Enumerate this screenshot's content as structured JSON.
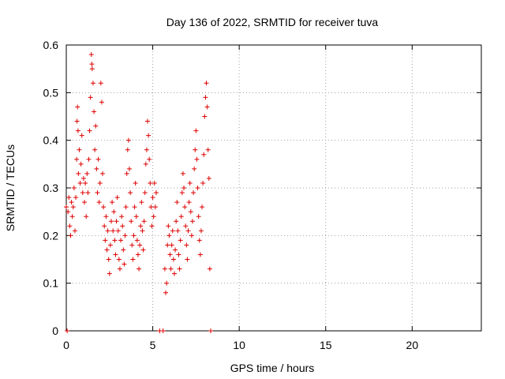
{
  "chart_data": {
    "type": "scatter",
    "title": "Day 136 of 2022, SRMTID for receiver tuva",
    "xlabel": "GPS time / hours",
    "ylabel": "SRMTID / TECUs",
    "xlim": [
      0,
      24
    ],
    "ylim": [
      0,
      0.6
    ],
    "x_ticks": [
      0,
      5,
      10,
      15,
      20
    ],
    "x_tick_labels": [
      "0",
      "5",
      "10",
      "15",
      "20"
    ],
    "y_ticks": [
      0,
      0.1,
      0.2,
      0.3,
      0.4,
      0.5,
      0.6
    ],
    "y_tick_labels": [
      "0",
      "0.1",
      "0.2",
      "0.3",
      "0.4",
      "0.5",
      "0.6"
    ],
    "grid": true,
    "marker": "+",
    "color": "#dd0000",
    "series": [
      {
        "name": "SRMTID",
        "points": [
          [
            0.0,
            0.26
          ],
          [
            0.05,
            0.0
          ],
          [
            0.1,
            0.25
          ],
          [
            0.15,
            0.28
          ],
          [
            0.2,
            0.22
          ],
          [
            0.25,
            0.2
          ],
          [
            0.3,
            0.27
          ],
          [
            0.35,
            0.24
          ],
          [
            0.4,
            0.26
          ],
          [
            0.45,
            0.3
          ],
          [
            0.5,
            0.21
          ],
          [
            0.55,
            0.28
          ],
          [
            0.6,
            0.36
          ],
          [
            0.62,
            0.44
          ],
          [
            0.65,
            0.47
          ],
          [
            0.68,
            0.42
          ],
          [
            0.7,
            0.33
          ],
          [
            0.75,
            0.38
          ],
          [
            0.8,
            0.31
          ],
          [
            0.85,
            0.35
          ],
          [
            0.9,
            0.41
          ],
          [
            0.95,
            0.29
          ],
          [
            1.0,
            0.32
          ],
          [
            1.05,
            0.27
          ],
          [
            1.1,
            0.31
          ],
          [
            1.15,
            0.24
          ],
          [
            1.2,
            0.33
          ],
          [
            1.25,
            0.29
          ],
          [
            1.3,
            0.36
          ],
          [
            1.35,
            0.42
          ],
          [
            1.4,
            0.49
          ],
          [
            1.45,
            0.58
          ],
          [
            1.48,
            0.56
          ],
          [
            1.5,
            0.55
          ],
          [
            1.55,
            0.52
          ],
          [
            1.6,
            0.46
          ],
          [
            1.65,
            0.38
          ],
          [
            1.7,
            0.43
          ],
          [
            1.75,
            0.34
          ],
          [
            1.8,
            0.29
          ],
          [
            1.85,
            0.36
          ],
          [
            1.9,
            0.27
          ],
          [
            1.95,
            0.31
          ],
          [
            2.0,
            0.52
          ],
          [
            2.05,
            0.48
          ],
          [
            2.1,
            0.33
          ],
          [
            2.15,
            0.26
          ],
          [
            2.2,
            0.22
          ],
          [
            2.25,
            0.19
          ],
          [
            2.3,
            0.24
          ],
          [
            2.35,
            0.17
          ],
          [
            2.4,
            0.21
          ],
          [
            2.45,
            0.15
          ],
          [
            2.5,
            0.12
          ],
          [
            2.55,
            0.18
          ],
          [
            2.6,
            0.23
          ],
          [
            2.65,
            0.27
          ],
          [
            2.7,
            0.21
          ],
          [
            2.75,
            0.25
          ],
          [
            2.8,
            0.19
          ],
          [
            2.85,
            0.16
          ],
          [
            2.9,
            0.23
          ],
          [
            2.95,
            0.28
          ],
          [
            3.0,
            0.21
          ],
          [
            3.05,
            0.15
          ],
          [
            3.1,
            0.13
          ],
          [
            3.15,
            0.19
          ],
          [
            3.2,
            0.24
          ],
          [
            3.25,
            0.22
          ],
          [
            3.3,
            0.17
          ],
          [
            3.35,
            0.14
          ],
          [
            3.4,
            0.2
          ],
          [
            3.45,
            0.26
          ],
          [
            3.5,
            0.33
          ],
          [
            3.55,
            0.38
          ],
          [
            3.6,
            0.4
          ],
          [
            3.65,
            0.34
          ],
          [
            3.7,
            0.29
          ],
          [
            3.75,
            0.23
          ],
          [
            3.8,
            0.18
          ],
          [
            3.85,
            0.15
          ],
          [
            3.9,
            0.2
          ],
          [
            3.95,
            0.26
          ],
          [
            4.0,
            0.31
          ],
          [
            4.05,
            0.24
          ],
          [
            4.1,
            0.19
          ],
          [
            4.15,
            0.16
          ],
          [
            4.2,
            0.13
          ],
          [
            4.25,
            0.18
          ],
          [
            4.3,
            0.22
          ],
          [
            4.35,
            0.27
          ],
          [
            4.4,
            0.21
          ],
          [
            4.45,
            0.17
          ],
          [
            4.5,
            0.23
          ],
          [
            4.55,
            0.29
          ],
          [
            4.6,
            0.35
          ],
          [
            4.65,
            0.38
          ],
          [
            4.7,
            0.44
          ],
          [
            4.75,
            0.41
          ],
          [
            4.8,
            0.36
          ],
          [
            4.85,
            0.31
          ],
          [
            4.9,
            0.26
          ],
          [
            4.95,
            0.22
          ],
          [
            5.0,
            0.28
          ],
          [
            5.05,
            0.24
          ],
          [
            5.1,
            0.31
          ],
          [
            5.15,
            0.26
          ],
          [
            5.2,
            0.29
          ],
          [
            5.4,
            0.0
          ],
          [
            5.6,
            0.0
          ],
          [
            5.7,
            0.13
          ],
          [
            5.75,
            0.08
          ],
          [
            5.8,
            0.1
          ],
          [
            5.85,
            0.18
          ],
          [
            5.9,
            0.22
          ],
          [
            5.95,
            0.2
          ],
          [
            6.0,
            0.16
          ],
          [
            6.05,
            0.13
          ],
          [
            6.1,
            0.18
          ],
          [
            6.15,
            0.21
          ],
          [
            6.2,
            0.15
          ],
          [
            6.25,
            0.12
          ],
          [
            6.3,
            0.17
          ],
          [
            6.35,
            0.23
          ],
          [
            6.4,
            0.27
          ],
          [
            6.45,
            0.21
          ],
          [
            6.5,
            0.16
          ],
          [
            6.55,
            0.13
          ],
          [
            6.6,
            0.19
          ],
          [
            6.65,
            0.24
          ],
          [
            6.7,
            0.29
          ],
          [
            6.75,
            0.33
          ],
          [
            6.8,
            0.3
          ],
          [
            6.85,
            0.26
          ],
          [
            6.9,
            0.22
          ],
          [
            6.95,
            0.18
          ],
          [
            7.0,
            0.15
          ],
          [
            7.05,
            0.21
          ],
          [
            7.1,
            0.27
          ],
          [
            7.15,
            0.31
          ],
          [
            7.2,
            0.25
          ],
          [
            7.25,
            0.2
          ],
          [
            7.3,
            0.23
          ],
          [
            7.35,
            0.29
          ],
          [
            7.4,
            0.34
          ],
          [
            7.45,
            0.38
          ],
          [
            7.5,
            0.42
          ],
          [
            7.55,
            0.36
          ],
          [
            7.6,
            0.3
          ],
          [
            7.65,
            0.24
          ],
          [
            7.7,
            0.19
          ],
          [
            7.75,
            0.16
          ],
          [
            7.8,
            0.21
          ],
          [
            7.85,
            0.26
          ],
          [
            7.9,
            0.31
          ],
          [
            7.95,
            0.37
          ],
          [
            8.0,
            0.45
          ],
          [
            8.05,
            0.49
          ],
          [
            8.1,
            0.52
          ],
          [
            8.15,
            0.47
          ],
          [
            8.2,
            0.38
          ],
          [
            8.25,
            0.32
          ],
          [
            8.3,
            0.13
          ],
          [
            8.35,
            0.0
          ]
        ]
      }
    ]
  }
}
